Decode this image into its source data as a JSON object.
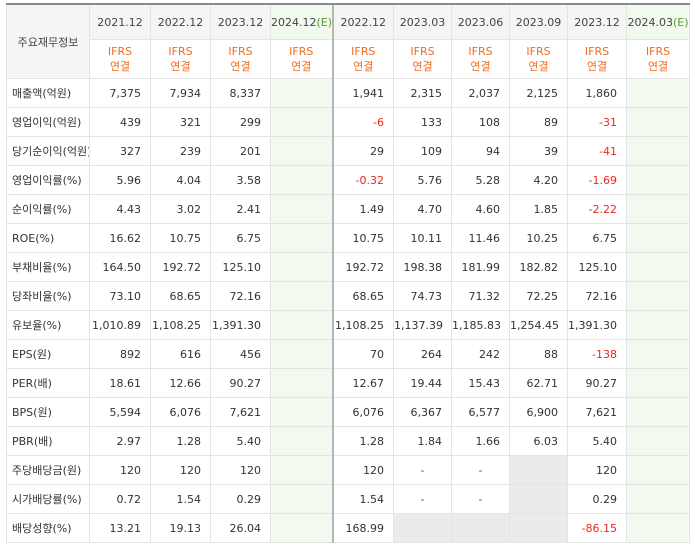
{
  "table": {
    "corner_label": "주요재무정보",
    "periods": [
      "2021.12",
      "2022.12",
      "2023.12",
      "2024.12",
      "2022.12",
      "2023.03",
      "2023.06",
      "2023.09",
      "2023.12",
      "2024.03"
    ],
    "estimate_mark": "(E)",
    "basis_line1": "IFRS",
    "basis_line2": "연결",
    "rows": [
      {
        "label": "매출액(억원)",
        "values": [
          "7,375",
          "7,934",
          "8,337",
          "",
          "1,941",
          "2,315",
          "2,037",
          "2,125",
          "1,860",
          ""
        ]
      },
      {
        "label": "영업이익(억원)",
        "values": [
          "439",
          "321",
          "299",
          "",
          "-6",
          "133",
          "108",
          "89",
          "-31",
          ""
        ]
      },
      {
        "label": "당기순이익(억원)",
        "values": [
          "327",
          "239",
          "201",
          "",
          "29",
          "109",
          "94",
          "39",
          "-41",
          ""
        ]
      },
      {
        "label": "영업이익률(%)",
        "values": [
          "5.96",
          "4.04",
          "3.58",
          "",
          "-0.32",
          "5.76",
          "5.28",
          "4.20",
          "-1.69",
          ""
        ]
      },
      {
        "label": "순이익률(%)",
        "values": [
          "4.43",
          "3.02",
          "2.41",
          "",
          "1.49",
          "4.70",
          "4.60",
          "1.85",
          "-2.22",
          ""
        ]
      },
      {
        "label": "ROE(%)",
        "values": [
          "16.62",
          "10.75",
          "6.75",
          "",
          "10.75",
          "10.11",
          "11.46",
          "10.25",
          "6.75",
          ""
        ]
      },
      {
        "label": "부채비율(%)",
        "values": [
          "164.50",
          "192.72",
          "125.10",
          "",
          "192.72",
          "198.38",
          "181.99",
          "182.82",
          "125.10",
          ""
        ]
      },
      {
        "label": "당좌비율(%)",
        "values": [
          "73.10",
          "68.65",
          "72.16",
          "",
          "68.65",
          "74.73",
          "71.32",
          "72.25",
          "72.16",
          ""
        ]
      },
      {
        "label": "유보율(%)",
        "values": [
          "1,010.89",
          "1,108.25",
          "1,391.30",
          "",
          "1,108.25",
          "1,137.39",
          "1,185.83",
          "1,254.45",
          "1,391.30",
          ""
        ]
      },
      {
        "label": "EPS(원)",
        "values": [
          "892",
          "616",
          "456",
          "",
          "70",
          "264",
          "242",
          "88",
          "-138",
          ""
        ]
      },
      {
        "label": "PER(배)",
        "values": [
          "18.61",
          "12.66",
          "90.27",
          "",
          "12.67",
          "19.44",
          "15.43",
          "62.71",
          "90.27",
          ""
        ]
      },
      {
        "label": "BPS(원)",
        "values": [
          "5,594",
          "6,076",
          "7,621",
          "",
          "6,076",
          "6,367",
          "6,577",
          "6,900",
          "7,621",
          ""
        ]
      },
      {
        "label": "PBR(배)",
        "values": [
          "2.97",
          "1.28",
          "5.40",
          "",
          "1.28",
          "1.84",
          "1.66",
          "6.03",
          "5.40",
          ""
        ]
      },
      {
        "label": "주당배당금(원)",
        "values": [
          "120",
          "120",
          "120",
          "",
          "120",
          "-",
          "-",
          "",
          "120",
          ""
        ]
      },
      {
        "label": "시가배당률(%)",
        "values": [
          "0.72",
          "1.54",
          "0.29",
          "",
          "1.54",
          "-",
          "-",
          "",
          "0.29",
          ""
        ]
      },
      {
        "label": "배당성향(%)",
        "values": [
          "13.21",
          "19.13",
          "26.04",
          "",
          "168.99",
          "",
          "",
          "",
          "-86.15",
          ""
        ]
      }
    ],
    "shaded_cells": [
      [
        13,
        7
      ],
      [
        14,
        7
      ],
      [
        15,
        5
      ],
      [
        15,
        6
      ],
      [
        15,
        7
      ]
    ],
    "group_start_rows": [
      3,
      6,
      9,
      13
    ]
  },
  "colors": {
    "basis_text": "#f26b21",
    "negative": "#e8281c",
    "estimate_mark": "#5a9e2e",
    "estimate_bg": "#f2f9ee",
    "header_bg": "#f5f5f5",
    "empty_cell_bg": "#ebebeb"
  }
}
